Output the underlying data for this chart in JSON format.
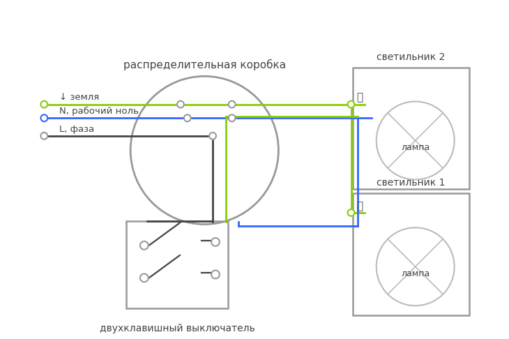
{
  "bg_color": "#ffffff",
  "title_text": "распределительная коробка",
  "switch_label": "двухклавишный выключатель",
  "svetilnik2_label": "светильник 2",
  "svetilnik1_label": "светильник 1",
  "lamp_label": "лампа",
  "earth_label": "↓ земля",
  "neutral_label": "N, рабочий ноль",
  "phase_label": "L, фаза",
  "color_green": "#88cc00",
  "color_blue": "#3366ff",
  "color_dark": "#444444",
  "color_gray": "#999999",
  "color_lgray": "#bbbbbb",
  "wire_lw": 2.0
}
